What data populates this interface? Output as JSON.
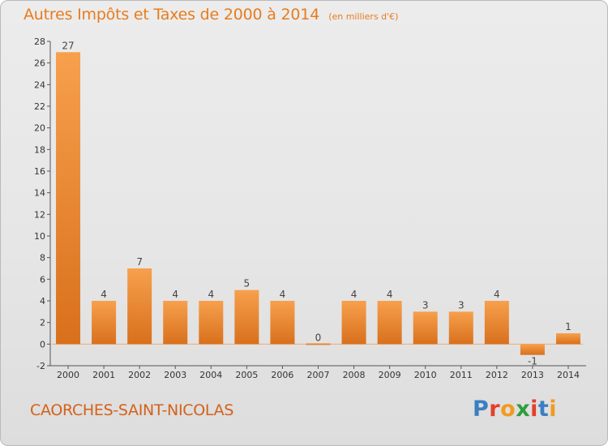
{
  "header": {
    "title": "Autres Impôts et Taxes de 2000 à 2014",
    "unit": "(en milliers d'€)"
  },
  "footer": {
    "commune": "CAORCHES-SAINT-NICOLAS",
    "logo_text": "Proxiti",
    "logo_colors": [
      "#3a7fc4",
      "#e2402a",
      "#f29a1f",
      "#2f9d3c",
      "#e2402a",
      "#3a7fc4",
      "#f29a1f"
    ]
  },
  "chart_data": {
    "type": "bar",
    "categories": [
      "2000",
      "2001",
      "2002",
      "2003",
      "2004",
      "2005",
      "2006",
      "2007",
      "2008",
      "2009",
      "2010",
      "2011",
      "2012",
      "2013",
      "2014"
    ],
    "values": [
      27,
      4,
      7,
      4,
      4,
      5,
      4,
      0,
      4,
      4,
      3,
      3,
      4,
      -1,
      1
    ],
    "value_labels": [
      "27",
      "4",
      "7",
      "4",
      "4",
      "5",
      "4",
      "0",
      "4",
      "4",
      "3",
      "3",
      "4",
      "-1",
      "1"
    ],
    "ylim": [
      -2,
      28
    ],
    "yticks": [
      -2,
      0,
      2,
      4,
      6,
      8,
      10,
      12,
      14,
      16,
      18,
      20,
      22,
      24,
      26,
      28
    ],
    "ytick_labels": [
      "-2",
      "0",
      "2",
      "4",
      "6",
      "8",
      "10",
      "12",
      "14",
      "16",
      "18",
      "20",
      "22",
      "24",
      "26",
      "28"
    ],
    "grid": false,
    "colors": {
      "bar_light": "#f7a04d",
      "bar_dark": "#d8701c",
      "zero_line": "#f4a96a"
    }
  }
}
